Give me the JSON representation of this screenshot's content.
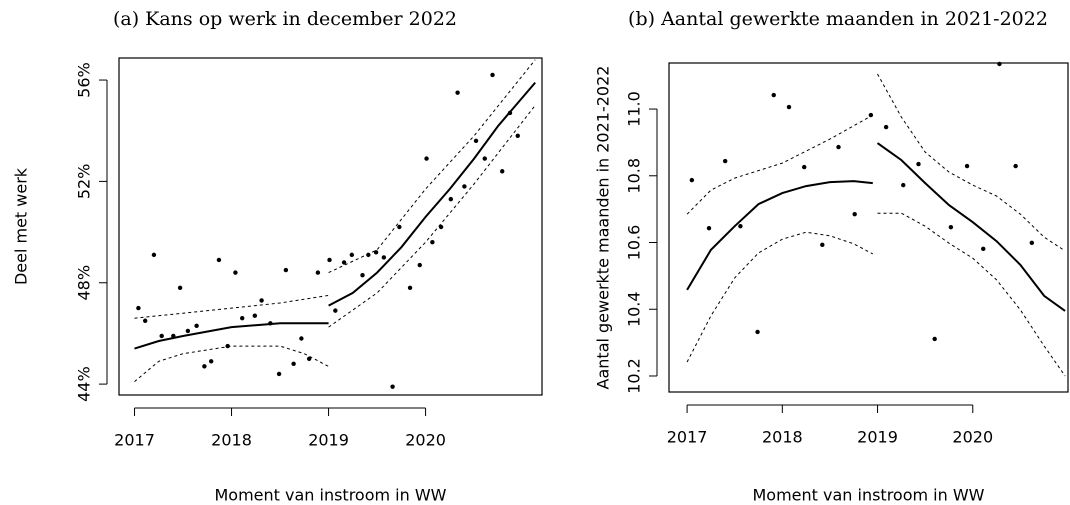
{
  "chart_data": [
    {
      "type": "scatter",
      "title": "(a) Kans op werk in december 2022",
      "x_label": "Moment van instroom in WW",
      "y_label": "Deel met werk",
      "xlim": [
        2016.84,
        2021.2
      ],
      "ylim": [
        43.57,
        56.87
      ],
      "xticks": [
        2017,
        2018,
        2019,
        2020
      ],
      "yticks": [
        {
          "value": 44,
          "label": "44%"
        },
        {
          "value": 48,
          "label": "48%"
        },
        {
          "value": 52,
          "label": "52%"
        },
        {
          "value": 56,
          "label": "56%"
        }
      ],
      "grid": false,
      "series": [
        {
          "type": "scatter",
          "color": "#000000",
          "x": [
            2017.04,
            2017.11,
            2017.2,
            2017.28,
            2017.4,
            2017.47,
            2017.55,
            2017.64,
            2017.72,
            2017.79,
            2017.87,
            2017.96,
            2018.04,
            2018.11,
            2018.24,
            2018.31,
            2018.4,
            2018.49,
            2018.56,
            2018.64,
            2018.72,
            2018.8,
            2018.89,
            2019.01,
            2019.07,
            2019.16,
            2019.24,
            2019.35,
            2019.41,
            2019.49,
            2019.57,
            2019.66,
            2019.73,
            2019.84,
            2019.94,
            2020.01,
            2020.07,
            2020.16,
            2020.26,
            2020.33,
            2020.4,
            2020.52,
            2020.61,
            2020.69,
            2020.79,
            2020.87,
            2020.95
          ],
          "values": [
            47.0,
            46.5,
            49.1,
            45.9,
            45.9,
            47.8,
            46.1,
            46.3,
            44.7,
            44.9,
            48.9,
            45.5,
            48.4,
            46.6,
            46.7,
            47.3,
            46.4,
            44.4,
            48.5,
            44.8,
            45.8,
            45.0,
            48.4,
            48.9,
            46.9,
            48.8,
            49.1,
            48.3,
            49.1,
            49.2,
            49.0,
            43.9,
            50.2,
            47.8,
            48.7,
            52.9,
            49.6,
            50.2,
            51.3,
            55.5,
            51.8,
            53.6,
            52.9,
            56.2,
            52.4,
            54.7,
            53.8
          ]
        },
        {
          "type": "line",
          "color": "#000000",
          "dash": false,
          "x": [
            2017,
            2017.25,
            2017.5,
            2018,
            2018.5,
            2019
          ],
          "values": [
            45.4,
            45.7,
            45.9,
            46.25,
            46.4,
            46.4
          ]
        },
        {
          "type": "line",
          "color": "#000000",
          "dash": true,
          "x": [
            2017,
            2017.5,
            2018,
            2018.5,
            2019
          ],
          "values": [
            46.6,
            46.8,
            47.0,
            47.2,
            47.5
          ]
        },
        {
          "type": "line",
          "color": "#000000",
          "dash": true,
          "x": [
            2017,
            2017.25,
            2017.5,
            2018,
            2018.5,
            2018.75,
            2019
          ],
          "values": [
            44.1,
            44.9,
            45.2,
            45.5,
            45.5,
            45.2,
            44.7
          ]
        },
        {
          "type": "line",
          "color": "#000000",
          "dash": false,
          "x": [
            2019,
            2019.25,
            2019.5,
            2019.75,
            2020,
            2020.25,
            2020.5,
            2020.75,
            2021.13
          ],
          "values": [
            47.1,
            47.6,
            48.4,
            49.4,
            50.6,
            51.7,
            52.9,
            54.2,
            55.9
          ]
        },
        {
          "type": "line",
          "color": "#000000",
          "dash": true,
          "x": [
            2019,
            2019.5,
            2020,
            2020.5,
            2021.13
          ],
          "values": [
            48.4,
            49.3,
            51.7,
            53.8,
            56.8
          ]
        },
        {
          "type": "line",
          "color": "#000000",
          "dash": true,
          "x": [
            2019,
            2019.5,
            2020,
            2020.5,
            2021.13
          ],
          "values": [
            46.25,
            47.6,
            49.6,
            51.9,
            55.0
          ]
        }
      ]
    },
    {
      "type": "scatter",
      "title": "(b) Aantal gewerkte maanden in 2021-2022",
      "x_label": "Moment van instroom in WW",
      "y_label": "Aantal gewerkte maanden in 2021-2022",
      "xlim": [
        2016.81,
        2021.0
      ],
      "ylim": [
        10.152,
        11.138
      ],
      "xticks": [
        2017,
        2018,
        2019,
        2020
      ],
      "yticks": [
        10.2,
        10.4,
        10.6,
        10.8,
        {
          "value": 11,
          "label": "11.0"
        }
      ],
      "grid": false,
      "series": [
        {
          "type": "scatter",
          "color": "#000000",
          "x": [
            2017.05,
            2017.23,
            2017.4,
            2017.56,
            2017.74,
            2017.91,
            2018.07,
            2018.23,
            2018.42,
            2018.59,
            2018.76,
            2018.93,
            2019.09,
            2019.27,
            2019.43,
            2019.6,
            2019.77,
            2019.94,
            2020.11,
            2020.28,
            2020.45,
            2020.62
          ],
          "values": [
            10.787,
            10.643,
            10.844,
            10.649,
            10.332,
            11.042,
            11.006,
            10.826,
            10.593,
            10.886,
            10.685,
            10.982,
            10.946,
            10.772,
            10.835,
            10.311,
            10.646,
            10.829,
            10.581,
            11.135,
            10.829,
            10.599
          ]
        },
        {
          "type": "line",
          "color": "#000000",
          "dash": false,
          "x": [
            2017,
            2017.25,
            2017.5,
            2017.75,
            2018,
            2018.25,
            2018.5,
            2018.75,
            2018.95
          ],
          "values": [
            10.458,
            10.578,
            10.649,
            10.715,
            10.748,
            10.769,
            10.781,
            10.784,
            10.778
          ]
        },
        {
          "type": "line",
          "color": "#000000",
          "dash": true,
          "x": [
            2017,
            2017.25,
            2017.5,
            2018,
            2018.5,
            2018.95
          ],
          "values": [
            10.685,
            10.757,
            10.793,
            10.838,
            10.91,
            10.982
          ]
        },
        {
          "type": "line",
          "color": "#000000",
          "dash": true,
          "x": [
            2017,
            2017.25,
            2017.5,
            2017.75,
            2018,
            2018.25,
            2018.5,
            2018.75,
            2018.95
          ],
          "values": [
            10.242,
            10.38,
            10.494,
            10.569,
            10.61,
            10.631,
            10.62,
            10.596,
            10.566
          ]
        },
        {
          "type": "line",
          "color": "#000000",
          "dash": false,
          "x": [
            2019,
            2019.25,
            2019.5,
            2019.75,
            2020,
            2020.25,
            2020.5,
            2020.75,
            2020.97
          ],
          "values": [
            10.898,
            10.847,
            10.778,
            10.712,
            10.661,
            10.604,
            10.533,
            10.44,
            10.395
          ]
        },
        {
          "type": "line",
          "color": "#000000",
          "dash": true,
          "x": [
            2019,
            2019.25,
            2019.5,
            2019.75,
            2020,
            2020.25,
            2020.5,
            2020.75,
            2020.97
          ],
          "values": [
            11.105,
            10.976,
            10.871,
            10.811,
            10.772,
            10.739,
            10.685,
            10.616,
            10.575
          ]
        },
        {
          "type": "line",
          "color": "#000000",
          "dash": true,
          "x": [
            2019,
            2019.25,
            2019.5,
            2019.75,
            2020,
            2020.25,
            2020.5,
            2020.75,
            2020.97
          ],
          "values": [
            10.688,
            10.688,
            10.649,
            10.598,
            10.553,
            10.488,
            10.398,
            10.29,
            10.2
          ]
        }
      ]
    }
  ]
}
